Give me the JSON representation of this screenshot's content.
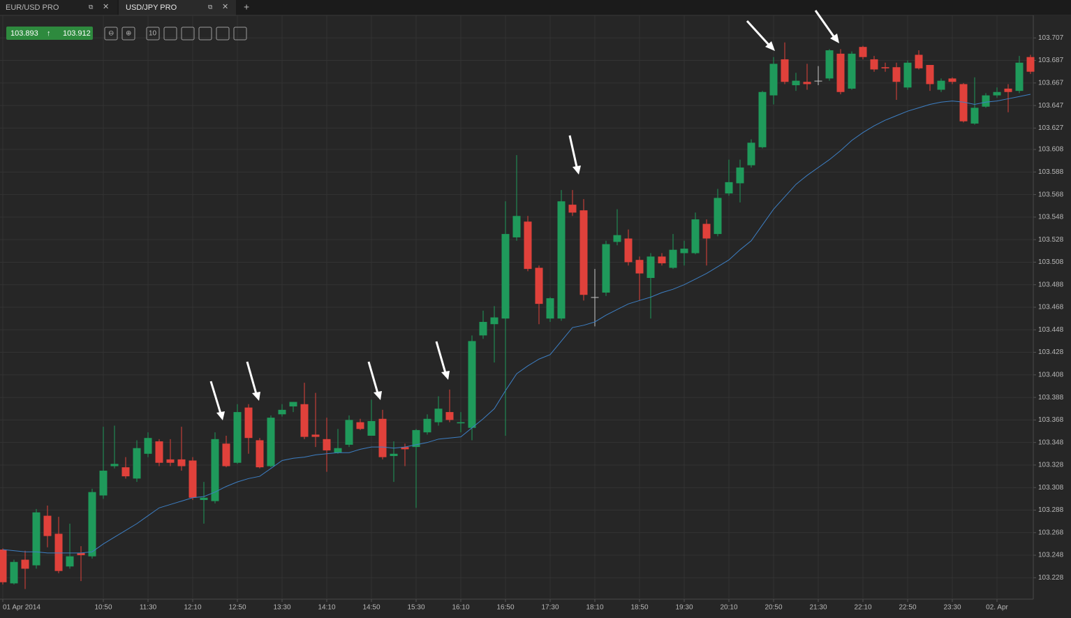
{
  "tabs": [
    {
      "label": "EUR/USD PRO"
    },
    {
      "label": "USD/JPY PRO"
    }
  ],
  "new_tab": "+",
  "quote": {
    "bid": "103.893",
    "ask": "103.912"
  },
  "toolbar": {
    "interval": "10"
  },
  "chart_data": {
    "type": "candlestick",
    "categories": [
      "01 Apr 2014",
      null,
      null,
      null,
      null,
      null,
      null,
      null,
      null,
      "10:50",
      null,
      null,
      null,
      "11:30",
      null,
      null,
      null,
      "12:10",
      null,
      null,
      null,
      "12:50",
      null,
      null,
      null,
      "13:30",
      null,
      null,
      null,
      "14:10",
      null,
      null,
      null,
      "14:50",
      null,
      null,
      null,
      "15:30",
      null,
      null,
      null,
      "16:10",
      null,
      null,
      null,
      "16:50",
      null,
      null,
      null,
      "17:30",
      null,
      null,
      null,
      "18:10",
      null,
      null,
      null,
      "18:50",
      null,
      null,
      null,
      "19:30",
      null,
      null,
      null,
      "20:10",
      null,
      null,
      null,
      "20:50",
      null,
      null,
      null,
      "21:30",
      null,
      null,
      null,
      "22:10",
      null,
      null,
      null,
      "22:50",
      null,
      null,
      null,
      "23:30",
      null,
      null,
      null,
      "02. Apr",
      null,
      null,
      null
    ],
    "open": [
      103.253,
      103.223,
      103.244,
      103.239,
      103.283,
      103.267,
      103.238,
      103.25,
      103.247,
      103.301,
      103.327,
      103.326,
      103.316,
      103.338,
      103.349,
      103.333,
      103.333,
      103.332,
      103.297,
      103.296,
      103.347,
      103.33,
      103.379,
      103.35,
      103.327,
      103.373,
      103.38,
      103.382,
      103.355,
      103.351,
      103.339,
      103.346,
      103.366,
      103.354,
      103.369,
      103.336,
      103.344,
      103.344,
      103.357,
      103.366,
      103.375,
      103.365,
      103.361,
      103.443,
      103.453,
      103.458,
      103.53,
      103.544,
      103.503,
      103.458,
      103.458,
      103.559,
      103.554,
      103.477,
      103.481,
      103.526,
      103.529,
      103.51,
      103.494,
      103.513,
      103.503,
      103.516,
      103.516,
      103.542,
      103.533,
      103.569,
      103.578,
      103.594,
      103.61,
      103.656,
      103.688,
      103.665,
      103.668,
      103.669,
      103.671,
      103.693,
      103.662,
      103.699,
      103.688,
      103.681,
      103.681,
      103.663,
      103.692,
      103.683,
      103.661,
      103.671,
      103.666,
      103.631,
      103.646,
      103.656,
      103.662,
      103.66,
      103.69
    ],
    "high": [
      103.254,
      103.244,
      103.252,
      103.289,
      103.292,
      103.282,
      103.276,
      103.256,
      103.307,
      103.362,
      103.363,
      103.335,
      103.35,
      103.357,
      103.351,
      103.351,
      103.362,
      103.335,
      103.313,
      103.357,
      103.354,
      103.382,
      103.382,
      103.352,
      103.372,
      103.382,
      103.384,
      103.401,
      103.392,
      103.37,
      103.36,
      103.372,
      103.369,
      103.386,
      103.377,
      103.349,
      103.347,
      103.36,
      103.373,
      103.389,
      103.395,
      103.375,
      103.443,
      103.465,
      103.469,
      103.562,
      103.603,
      103.549,
      103.505,
      103.477,
      103.572,
      103.572,
      103.564,
      103.502,
      103.527,
      103.555,
      103.537,
      103.513,
      103.516,
      103.516,
      103.533,
      103.527,
      103.552,
      103.546,
      103.573,
      103.599,
      103.599,
      103.617,
      103.66,
      103.69,
      103.703,
      103.676,
      103.684,
      103.682,
      103.697,
      103.697,
      103.695,
      103.7,
      103.691,
      103.685,
      103.685,
      103.687,
      103.696,
      103.683,
      103.671,
      103.672,
      103.667,
      103.672,
      103.658,
      103.663,
      103.666,
      103.691,
      103.692
    ],
    "low": [
      103.222,
      103.222,
      103.218,
      103.236,
      103.255,
      103.232,
      103.236,
      103.225,
      103.245,
      103.298,
      103.325,
      103.316,
      103.313,
      103.335,
      103.327,
      103.327,
      103.323,
      103.297,
      103.276,
      103.294,
      103.326,
      103.329,
      103.338,
      103.325,
      103.326,
      103.371,
      103.375,
      103.351,
      103.344,
      103.322,
      103.338,
      103.344,
      103.359,
      103.354,
      103.333,
      103.313,
      103.327,
      103.29,
      103.355,
      103.363,
      103.366,
      103.357,
      103.35,
      103.44,
      103.419,
      103.354,
      103.527,
      103.5,
      103.453,
      103.455,
      103.456,
      103.549,
      103.474,
      103.451,
      103.478,
      103.523,
      103.505,
      103.474,
      103.458,
      103.505,
      103.502,
      103.505,
      103.515,
      103.505,
      103.531,
      103.567,
      103.561,
      103.592,
      103.609,
      103.648,
      103.666,
      103.66,
      103.661,
      103.665,
      103.669,
      103.657,
      103.661,
      103.688,
      103.677,
      103.677,
      103.652,
      103.661,
      103.679,
      103.66,
      103.659,
      103.666,
      103.632,
      103.63,
      103.645,
      103.654,
      103.641,
      103.658,
      103.675
    ],
    "close": [
      103.224,
      103.242,
      103.236,
      103.286,
      103.265,
      103.234,
      103.247,
      103.248,
      103.304,
      103.323,
      103.329,
      103.318,
      103.343,
      103.352,
      103.33,
      103.33,
      103.327,
      103.299,
      103.299,
      103.351,
      103.327,
      103.375,
      103.352,
      103.326,
      103.37,
      103.377,
      103.384,
      103.353,
      103.353,
      103.341,
      103.343,
      103.368,
      103.36,
      103.367,
      103.335,
      103.338,
      103.342,
      103.359,
      103.369,
      103.378,
      103.368,
      103.366,
      103.438,
      103.455,
      103.459,
      103.533,
      103.549,
      103.502,
      103.471,
      103.476,
      103.562,
      103.552,
      103.479,
      103.477,
      103.524,
      103.532,
      103.508,
      103.498,
      103.513,
      103.507,
      103.519,
      103.52,
      103.546,
      103.529,
      103.565,
      103.579,
      103.592,
      103.614,
      103.659,
      103.684,
      103.668,
      103.669,
      103.666,
      103.669,
      103.696,
      103.659,
      103.693,
      103.69,
      103.679,
      103.68,
      103.668,
      103.685,
      103.68,
      103.666,
      103.669,
      103.668,
      103.633,
      103.645,
      103.656,
      103.659,
      103.659,
      103.685,
      103.677
    ],
    "up_color": "#1f9a5b",
    "down_color": "#e0413b",
    "flat_color": "#c8c8c8",
    "moving_average": {
      "color": "#3d7fc4",
      "values": [
        103.253,
        103.252,
        103.251,
        103.251,
        103.25,
        103.25,
        103.25,
        103.25,
        103.251,
        103.258,
        103.264,
        103.27,
        103.276,
        103.283,
        103.29,
        103.293,
        103.296,
        103.299,
        103.3,
        103.304,
        103.309,
        103.313,
        103.316,
        103.318,
        103.325,
        103.332,
        103.334,
        103.335,
        103.337,
        103.338,
        103.339,
        103.339,
        103.342,
        103.344,
        103.344,
        103.343,
        103.344,
        103.346,
        103.348,
        103.351,
        103.352,
        103.353,
        103.361,
        103.369,
        103.378,
        103.394,
        103.409,
        103.416,
        103.422,
        103.426,
        103.438,
        103.45,
        103.452,
        103.455,
        103.461,
        103.466,
        103.471,
        103.474,
        103.477,
        103.481,
        103.484,
        103.488,
        103.493,
        103.498,
        103.504,
        103.51,
        103.519,
        103.527,
        103.541,
        103.555,
        103.566,
        103.577,
        103.585,
        103.592,
        103.599,
        103.607,
        103.616,
        103.623,
        103.629,
        103.634,
        103.638,
        103.642,
        103.645,
        103.648,
        103.65,
        103.651,
        103.65,
        103.648,
        103.65,
        103.651,
        103.653,
        103.655,
        103.657
      ]
    },
    "ylim": [
      103.209,
      103.727
    ],
    "yticks": [
      103.228,
      103.248,
      103.268,
      103.288,
      103.308,
      103.328,
      103.348,
      103.368,
      103.388,
      103.408,
      103.428,
      103.448,
      103.468,
      103.488,
      103.508,
      103.528,
      103.548,
      103.568,
      103.588,
      103.608,
      103.627,
      103.647,
      103.667,
      103.687,
      103.707
    ],
    "grid": true
  }
}
